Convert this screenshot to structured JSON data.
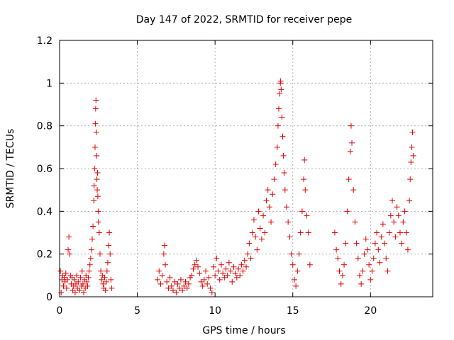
{
  "chart_data": {
    "type": "scatter",
    "title": "Day 147 of 2022, SRMTID for receiver pepe",
    "xlabel": "GPS time / hours",
    "ylabel": "SRMTID / TECUs",
    "xlim": [
      0,
      24
    ],
    "ylim": [
      0,
      1.2
    ],
    "xticks": [
      0,
      5,
      10,
      15,
      20
    ],
    "xtick_labels": [
      "0",
      "5",
      "10",
      "15",
      "20"
    ],
    "yticks": [
      0,
      0.2,
      0.4,
      0.6,
      0.8,
      1,
      1.2
    ],
    "ytick_labels": [
      "0",
      "0.2",
      "0.4",
      "0.6",
      "0.8",
      "1",
      "1.2"
    ],
    "grid": true,
    "marker": "+",
    "color": "#e00000",
    "series": [
      {
        "name": "SRMTID",
        "points": [
          [
            0.05,
            0.12
          ],
          [
            0.1,
            0.02
          ],
          [
            0.15,
            0.08
          ],
          [
            0.2,
            0.1
          ],
          [
            0.25,
            0.05
          ],
          [
            0.3,
            0.09
          ],
          [
            0.35,
            0.07
          ],
          [
            0.4,
            0.11
          ],
          [
            0.45,
            0.04
          ],
          [
            0.5,
            0.08
          ],
          [
            0.55,
            0.22
          ],
          [
            0.6,
            0.28
          ],
          [
            0.65,
            0.2
          ],
          [
            0.7,
            0.1
          ],
          [
            0.75,
            0.06
          ],
          [
            0.8,
            0.09
          ],
          [
            0.85,
            0.03
          ],
          [
            0.9,
            0.05
          ],
          [
            0.95,
            0.08
          ],
          [
            1.0,
            0.02
          ],
          [
            1.05,
            0.06
          ],
          [
            1.1,
            0.1
          ],
          [
            1.15,
            0.04
          ],
          [
            1.2,
            0.07
          ],
          [
            1.3,
            0.03
          ],
          [
            1.35,
            0.09
          ],
          [
            1.4,
            0.05
          ],
          [
            1.45,
            0.12
          ],
          [
            1.5,
            0.06
          ],
          [
            1.55,
            0.02
          ],
          [
            1.6,
            0.08
          ],
          [
            1.65,
            0.04
          ],
          [
            1.7,
            0.1
          ],
          [
            1.75,
            0.07
          ],
          [
            1.8,
            0.05
          ],
          [
            1.85,
            0.09
          ],
          [
            1.9,
            0.12
          ],
          [
            1.95,
            0.15
          ],
          [
            2.0,
            0.18
          ],
          [
            2.05,
            0.22
          ],
          [
            2.1,
            0.27
          ],
          [
            2.15,
            0.33
          ],
          [
            2.2,
            0.45
          ],
          [
            2.22,
            0.52
          ],
          [
            2.25,
            0.6
          ],
          [
            2.28,
            0.7
          ],
          [
            2.3,
            0.81
          ],
          [
            2.32,
            0.88
          ],
          [
            2.34,
            0.92
          ],
          [
            2.36,
            0.77
          ],
          [
            2.38,
            0.66
          ],
          [
            2.4,
            0.55
          ],
          [
            2.42,
            0.5
          ],
          [
            2.44,
            0.58
          ],
          [
            2.46,
            0.47
          ],
          [
            2.48,
            0.4
          ],
          [
            2.5,
            0.35
          ],
          [
            2.55,
            0.3
          ],
          [
            2.6,
            0.2
          ],
          [
            2.65,
            0.12
          ],
          [
            2.7,
            0.08
          ],
          [
            2.75,
            0.1
          ],
          [
            2.8,
            0.06
          ],
          [
            2.85,
            0.04
          ],
          [
            2.9,
            0.09
          ],
          [
            2.95,
            0.03
          ],
          [
            3.0,
            0.07
          ],
          [
            3.05,
            0.12
          ],
          [
            3.1,
            0.16
          ],
          [
            3.15,
            0.24
          ],
          [
            3.2,
            0.3
          ],
          [
            3.25,
            0.2
          ],
          [
            3.3,
            0.08
          ],
          [
            3.35,
            0.04
          ],
          [
            6.3,
            0.08
          ],
          [
            6.4,
            0.12
          ],
          [
            6.5,
            0.06
          ],
          [
            6.6,
            0.1
          ],
          [
            6.7,
            0.2
          ],
          [
            6.75,
            0.24
          ],
          [
            6.8,
            0.15
          ],
          [
            6.9,
            0.07
          ],
          [
            7.0,
            0.04
          ],
          [
            7.1,
            0.09
          ],
          [
            7.2,
            0.05
          ],
          [
            7.3,
            0.03
          ],
          [
            7.4,
            0.07
          ],
          [
            7.5,
            0.02
          ],
          [
            7.6,
            0.06
          ],
          [
            7.7,
            0.04
          ],
          [
            7.8,
            0.08
          ],
          [
            7.9,
            0.03
          ],
          [
            8.0,
            0.05
          ],
          [
            8.1,
            0.07
          ],
          [
            8.2,
            0.04
          ],
          [
            8.3,
            0.06
          ],
          [
            8.4,
            0.09
          ],
          [
            8.5,
            0.1
          ],
          [
            8.6,
            0.13
          ],
          [
            8.7,
            0.15
          ],
          [
            8.8,
            0.17
          ],
          [
            8.9,
            0.14
          ],
          [
            9.0,
            0.11
          ],
          [
            9.1,
            0.07
          ],
          [
            9.2,
            0.05
          ],
          [
            9.3,
            0.08
          ],
          [
            9.4,
            0.12
          ],
          [
            9.5,
            0.06
          ],
          [
            9.6,
            0.09
          ],
          [
            9.7,
            0.04
          ],
          [
            9.8,
            0.02
          ],
          [
            9.9,
            0.14
          ],
          [
            10.0,
            0.1
          ],
          [
            10.1,
            0.18
          ],
          [
            10.2,
            0.12
          ],
          [
            10.3,
            0.08
          ],
          [
            10.4,
            0.15
          ],
          [
            10.5,
            0.11
          ],
          [
            10.6,
            0.09
          ],
          [
            10.7,
            0.13
          ],
          [
            10.8,
            0.1
          ],
          [
            10.9,
            0.16
          ],
          [
            11.0,
            0.12
          ],
          [
            11.1,
            0.07
          ],
          [
            11.2,
            0.14
          ],
          [
            11.3,
            0.11
          ],
          [
            11.4,
            0.09
          ],
          [
            11.5,
            0.13
          ],
          [
            11.6,
            0.1
          ],
          [
            11.7,
            0.15
          ],
          [
            11.8,
            0.12
          ],
          [
            11.9,
            0.17
          ],
          [
            12.0,
            0.14
          ],
          [
            12.1,
            0.2
          ],
          [
            12.2,
            0.25
          ],
          [
            12.3,
            0.18
          ],
          [
            12.4,
            0.3
          ],
          [
            12.5,
            0.36
          ],
          [
            12.6,
            0.28
          ],
          [
            12.7,
            0.22
          ],
          [
            12.8,
            0.4
          ],
          [
            12.9,
            0.32
          ],
          [
            13.0,
            0.27
          ],
          [
            13.1,
            0.38
          ],
          [
            13.2,
            0.3
          ],
          [
            13.3,
            0.45
          ],
          [
            13.4,
            0.5
          ],
          [
            13.5,
            0.42
          ],
          [
            13.6,
            0.35
          ],
          [
            13.7,
            0.48
          ],
          [
            13.8,
            0.55
          ],
          [
            13.9,
            0.62
          ],
          [
            14.0,
            0.7
          ],
          [
            14.05,
            0.8
          ],
          [
            14.1,
            0.88
          ],
          [
            14.15,
            0.95
          ],
          [
            14.2,
            1.0
          ],
          [
            14.22,
            1.01
          ],
          [
            14.25,
            0.97
          ],
          [
            14.3,
            0.84
          ],
          [
            14.35,
            0.75
          ],
          [
            14.4,
            0.66
          ],
          [
            14.45,
            0.58
          ],
          [
            14.5,
            0.5
          ],
          [
            14.6,
            0.42
          ],
          [
            14.7,
            0.35
          ],
          [
            14.8,
            0.28
          ],
          [
            14.9,
            0.2
          ],
          [
            15.0,
            0.15
          ],
          [
            15.1,
            0.08
          ],
          [
            15.2,
            0.05
          ],
          [
            15.3,
            0.12
          ],
          [
            15.4,
            0.2
          ],
          [
            15.5,
            0.3
          ],
          [
            15.6,
            0.4
          ],
          [
            15.7,
            0.55
          ],
          [
            15.75,
            0.64
          ],
          [
            15.8,
            0.5
          ],
          [
            15.9,
            0.38
          ],
          [
            16.0,
            0.3
          ],
          [
            16.1,
            0.15
          ],
          [
            17.7,
            0.3
          ],
          [
            17.8,
            0.22
          ],
          [
            17.9,
            0.18
          ],
          [
            18.0,
            0.12
          ],
          [
            18.1,
            0.06
          ],
          [
            18.2,
            0.1
          ],
          [
            18.3,
            0.15
          ],
          [
            18.4,
            0.25
          ],
          [
            18.5,
            0.4
          ],
          [
            18.6,
            0.55
          ],
          [
            18.7,
            0.68
          ],
          [
            18.75,
            0.8
          ],
          [
            18.8,
            0.72
          ],
          [
            18.9,
            0.5
          ],
          [
            19.0,
            0.35
          ],
          [
            19.1,
            0.25
          ],
          [
            19.2,
            0.18
          ],
          [
            19.3,
            0.1
          ],
          [
            19.4,
            0.06
          ],
          [
            19.5,
            0.12
          ],
          [
            19.6,
            0.2
          ],
          [
            19.7,
            0.27
          ],
          [
            19.8,
            0.22
          ],
          [
            19.9,
            0.15
          ],
          [
            20.0,
            0.08
          ],
          [
            20.1,
            0.12
          ],
          [
            20.2,
            0.18
          ],
          [
            20.3,
            0.25
          ],
          [
            20.4,
            0.3
          ],
          [
            20.5,
            0.22
          ],
          [
            20.6,
            0.16
          ],
          [
            20.7,
            0.28
          ],
          [
            20.8,
            0.34
          ],
          [
            20.9,
            0.25
          ],
          [
            21.0,
            0.18
          ],
          [
            21.1,
            0.12
          ],
          [
            21.2,
            0.3
          ],
          [
            21.3,
            0.38
          ],
          [
            21.4,
            0.45
          ],
          [
            21.5,
            0.35
          ],
          [
            21.6,
            0.28
          ],
          [
            21.7,
            0.42
          ],
          [
            21.8,
            0.38
          ],
          [
            21.9,
            0.3
          ],
          [
            22.0,
            0.25
          ],
          [
            22.1,
            0.35
          ],
          [
            22.2,
            0.4
          ],
          [
            22.3,
            0.3
          ],
          [
            22.4,
            0.22
          ],
          [
            22.5,
            0.45
          ],
          [
            22.55,
            0.55
          ],
          [
            22.6,
            0.63
          ],
          [
            22.65,
            0.7
          ],
          [
            22.7,
            0.77
          ],
          [
            22.75,
            0.66
          ]
        ]
      }
    ]
  }
}
